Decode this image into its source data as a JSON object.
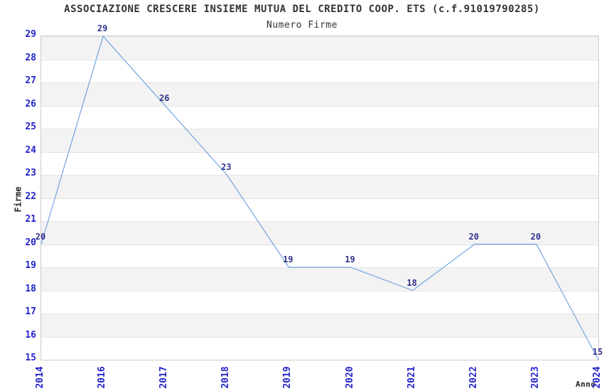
{
  "header": {
    "title": "ASSOCIAZIONE CRESCERE INSIEME MUTUA DEL CREDITO COOP. ETS (c.f.91019790285)",
    "subtitle": "Numero Firme"
  },
  "colors": {
    "tick_label": "#2222cc",
    "data_label": "#32328c",
    "line": "#72a3dc",
    "band_gray": "#f3f3f3",
    "band_white": "#ffffff",
    "gridline": "#e4e4e4",
    "plot_border": "#cccccc",
    "text": "#333333"
  },
  "chart_data": {
    "type": "line",
    "title": "ASSOCIAZIONE CRESCERE INSIEME MUTUA DEL CREDITO COOP. ETS (c.f.91019790285)",
    "subtitle": "Numero Firme",
    "xlabel": "Anno",
    "ylabel": "Firme",
    "categories": [
      "2014",
      "2016",
      "2017",
      "2018",
      "2019",
      "2020",
      "2021",
      "2022",
      "2023",
      "2024"
    ],
    "values": [
      20,
      29,
      26,
      23,
      19,
      19,
      18,
      20,
      20,
      15
    ],
    "ylim": [
      15,
      29
    ],
    "ytick_step": 1,
    "yticks": [
      15,
      16,
      17,
      18,
      19,
      20,
      21,
      22,
      23,
      24,
      25,
      26,
      27,
      28,
      29
    ],
    "grid": "horizontal-alternating-bands",
    "legend": "none",
    "data_labels_shown": true,
    "x_axis_note": "categorical spacing, year 2015 absent"
  }
}
